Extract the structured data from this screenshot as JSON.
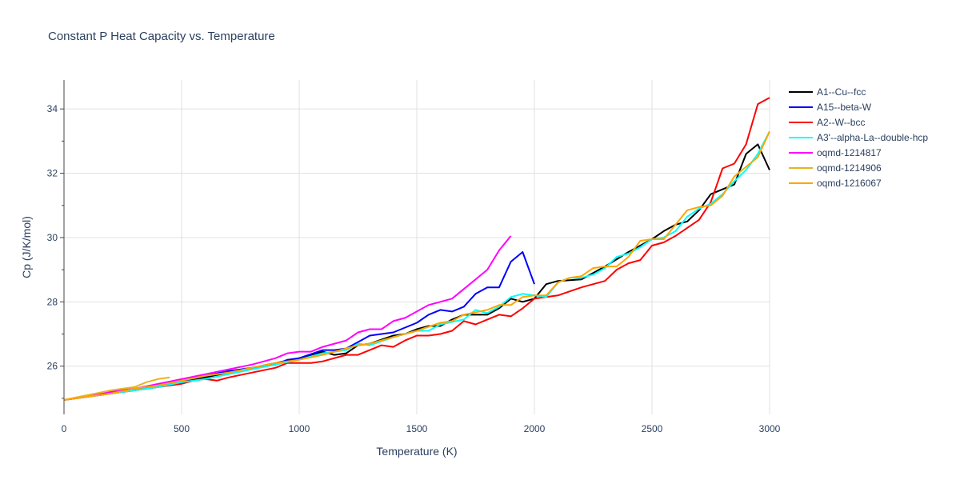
{
  "chart_data": {
    "type": "line",
    "title": "Constant P Heat Capacity vs. Temperature",
    "xlabel": "Temperature (K)",
    "ylabel": "Cp (J/K/mol)",
    "xlim": [
      0,
      3000
    ],
    "ylim": [
      24.5,
      34.9
    ],
    "xticks": [
      0,
      500,
      1000,
      1500,
      2000,
      2500,
      3000
    ],
    "yticks": [
      26,
      28,
      30,
      32,
      34
    ],
    "grid": true,
    "legend_position": "right",
    "series": [
      {
        "name": "A1--Cu--fcc",
        "color": "#000000",
        "x": [
          0,
          100,
          200,
          300,
          400,
          500,
          600,
          700,
          800,
          900,
          1000,
          1100,
          1150,
          1200,
          1250,
          1300,
          1400,
          1450,
          1500,
          1550,
          1600,
          1650,
          1700,
          1800,
          1850,
          1900,
          1950,
          2000,
          2050,
          2100,
          2200,
          2300,
          2400,
          2500,
          2550,
          2600,
          2650,
          2700,
          2750,
          2850,
          2900,
          2950,
          3000
        ],
        "y": [
          24.95,
          25.05,
          25.15,
          25.25,
          25.35,
          25.5,
          25.65,
          25.8,
          25.95,
          26.1,
          26.25,
          26.45,
          26.35,
          26.4,
          26.65,
          26.7,
          26.95,
          27.0,
          27.15,
          27.25,
          27.25,
          27.45,
          27.6,
          27.6,
          27.8,
          28.1,
          28.0,
          28.1,
          28.55,
          28.65,
          28.7,
          29.1,
          29.55,
          29.95,
          30.2,
          30.4,
          30.5,
          30.85,
          31.35,
          31.65,
          32.6,
          32.9,
          32.1
        ]
      },
      {
        "name": "A15--beta-W",
        "color": "#0000ff",
        "x": [
          0,
          100,
          200,
          300,
          400,
          500,
          600,
          700,
          800,
          900,
          950,
          1000,
          1100,
          1150,
          1200,
          1250,
          1300,
          1400,
          1450,
          1500,
          1550,
          1600,
          1650,
          1700,
          1750,
          1800,
          1850,
          1900,
          1950,
          2000
        ],
        "y": [
          24.95,
          25.05,
          25.15,
          25.3,
          25.4,
          25.55,
          25.7,
          25.85,
          25.95,
          26.05,
          26.2,
          26.25,
          26.5,
          26.5,
          26.55,
          26.75,
          26.95,
          27.05,
          27.2,
          27.35,
          27.6,
          27.75,
          27.7,
          27.85,
          28.25,
          28.45,
          28.45,
          29.25,
          29.55,
          28.55
        ]
      },
      {
        "name": "A2--W--bcc",
        "color": "#ff0000",
        "x": [
          0,
          100,
          200,
          300,
          400,
          500,
          550,
          600,
          650,
          700,
          800,
          900,
          950,
          1000,
          1050,
          1100,
          1200,
          1250,
          1300,
          1350,
          1400,
          1450,
          1500,
          1550,
          1600,
          1650,
          1700,
          1750,
          1800,
          1850,
          1900,
          1950,
          2000,
          2100,
          2200,
          2250,
          2300,
          2350,
          2400,
          2450,
          2500,
          2550,
          2600,
          2700,
          2750,
          2800,
          2850,
          2900,
          2950,
          3000
        ],
        "y": [
          24.95,
          25.05,
          25.15,
          25.25,
          25.35,
          25.45,
          25.55,
          25.6,
          25.55,
          25.65,
          25.8,
          25.95,
          26.1,
          26.1,
          26.1,
          26.15,
          26.35,
          26.35,
          26.5,
          26.65,
          26.6,
          26.8,
          26.95,
          26.95,
          27.0,
          27.1,
          27.4,
          27.3,
          27.45,
          27.6,
          27.55,
          27.8,
          28.1,
          28.2,
          28.45,
          28.55,
          28.65,
          29.0,
          29.2,
          29.3,
          29.75,
          29.85,
          30.05,
          30.55,
          31.1,
          32.15,
          32.3,
          32.9,
          34.15,
          34.35
        ]
      },
      {
        "name": "A3'--alpha-La--double-hcp",
        "color": "#00ffff",
        "x": [
          0,
          100,
          200,
          300,
          400,
          500,
          600,
          700,
          800,
          900,
          1000,
          1100,
          1200,
          1250,
          1300,
          1400,
          1500,
          1550,
          1600,
          1700,
          1750,
          1800,
          1850,
          1900,
          1950,
          2000,
          2050,
          2100,
          2150,
          2200,
          2250,
          2300,
          2350,
          2400,
          2450,
          2500,
          2550,
          2600,
          2650,
          2700,
          2750,
          2800,
          2850,
          2900,
          2950,
          3000
        ],
        "y": [
          24.95,
          25.05,
          25.15,
          25.25,
          25.35,
          25.5,
          25.6,
          25.75,
          25.9,
          26.05,
          26.2,
          26.4,
          26.5,
          26.7,
          26.65,
          26.9,
          27.1,
          27.1,
          27.3,
          27.45,
          27.75,
          27.65,
          27.85,
          28.15,
          28.25,
          28.2,
          28.15,
          28.6,
          28.75,
          28.75,
          28.85,
          29.05,
          29.4,
          29.5,
          29.7,
          29.95,
          30.0,
          30.2,
          30.65,
          30.9,
          31.05,
          31.35,
          31.75,
          32.1,
          32.6,
          33.3
        ]
      },
      {
        "name": "oqmd-1214817",
        "color": "#ff00ff",
        "x": [
          0,
          100,
          200,
          300,
          400,
          500,
          600,
          700,
          800,
          900,
          950,
          1000,
          1050,
          1100,
          1200,
          1250,
          1300,
          1350,
          1400,
          1450,
          1500,
          1550,
          1600,
          1650,
          1700,
          1800,
          1850,
          1900
        ],
        "y": [
          24.95,
          25.05,
          25.2,
          25.3,
          25.45,
          25.6,
          25.75,
          25.9,
          26.05,
          26.25,
          26.4,
          26.45,
          26.45,
          26.6,
          26.8,
          27.05,
          27.15,
          27.15,
          27.4,
          27.5,
          27.7,
          27.9,
          28.0,
          28.1,
          28.4,
          29.0,
          29.6,
          30.05
        ]
      },
      {
        "name": "oqmd-1214906",
        "color": "#e6b422",
        "x": [
          0,
          100,
          200,
          300,
          350,
          400,
          450
        ],
        "y": [
          24.95,
          25.1,
          25.25,
          25.35,
          25.5,
          25.6,
          25.65
        ]
      },
      {
        "name": "oqmd-1216067",
        "color": "#ffa500",
        "x": [
          0,
          100,
          200,
          300,
          400,
          500,
          600,
          700,
          800,
          900,
          1000,
          1100,
          1200,
          1250,
          1300,
          1400,
          1500,
          1600,
          1650,
          1700,
          1800,
          1850,
          1900,
          1950,
          2000,
          2050,
          2100,
          2150,
          2200,
          2250,
          2300,
          2350,
          2400,
          2450,
          2500,
          2550,
          2600,
          2650,
          2700,
          2750,
          2800,
          2850,
          2900,
          2950,
          3000
        ],
        "y": [
          24.95,
          25.05,
          25.15,
          25.3,
          25.4,
          25.55,
          25.7,
          25.8,
          25.95,
          26.1,
          26.2,
          26.35,
          26.55,
          26.65,
          26.7,
          26.9,
          27.1,
          27.35,
          27.4,
          27.6,
          27.75,
          27.9,
          27.9,
          28.15,
          28.2,
          28.2,
          28.6,
          28.75,
          28.8,
          29.05,
          29.1,
          29.1,
          29.4,
          29.9,
          29.95,
          29.95,
          30.4,
          30.85,
          30.95,
          31.0,
          31.3,
          31.9,
          32.2,
          32.5,
          33.3
        ]
      }
    ]
  }
}
